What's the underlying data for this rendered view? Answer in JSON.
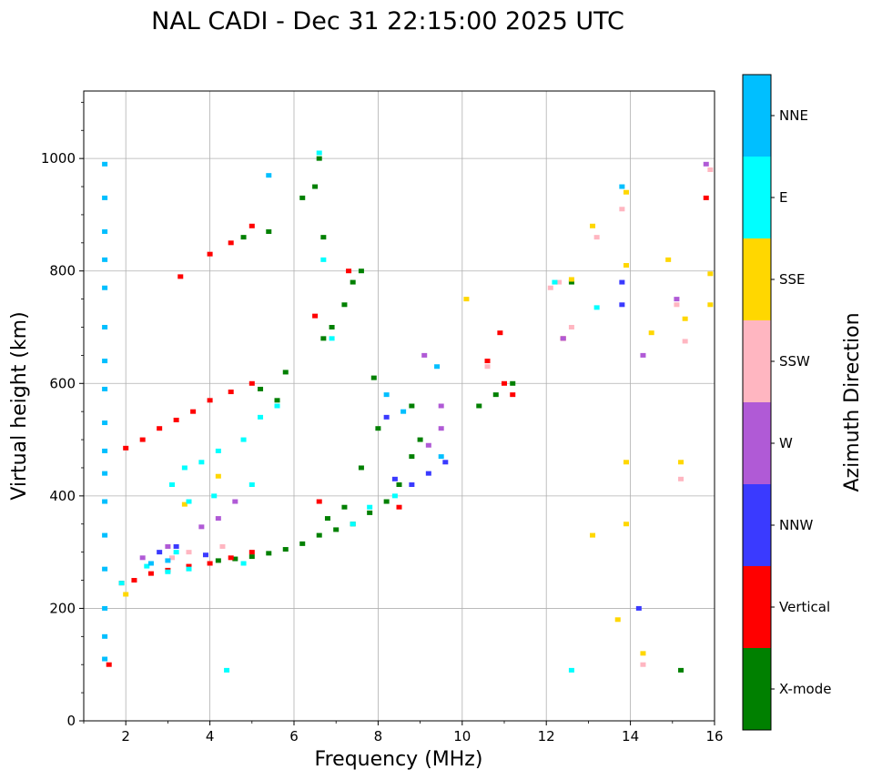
{
  "chart_data": {
    "type": "scatter",
    "title": "NAL CADI - Dec 31 22:15:00 2025 UTC",
    "xlabel": "Frequency (MHz)",
    "ylabel": "Virtual height (km)",
    "xlim": [
      1,
      16
    ],
    "ylim": [
      0,
      1120
    ],
    "xticks": [
      2,
      4,
      6,
      8,
      10,
      12,
      14,
      16
    ],
    "yticks": [
      0,
      200,
      400,
      600,
      800,
      1000
    ],
    "grid": true,
    "colorbar": {
      "label": "Azimuth Direction",
      "categories": [
        "X-mode",
        "Vertical",
        "NNW",
        "W",
        "SSW",
        "SSE",
        "E",
        "NNE"
      ],
      "colors": [
        "#008000",
        "#ff0000",
        "#3a3aff",
        "#b05ad6",
        "#ffb6c1",
        "#ffd700",
        "#00ffff",
        "#00bfff"
      ]
    },
    "series": [
      {
        "name": "X-mode",
        "points": [
          [
            4.2,
            285
          ],
          [
            4.6,
            288
          ],
          [
            5.0,
            292
          ],
          [
            5.4,
            298
          ],
          [
            5.8,
            305
          ],
          [
            6.2,
            315
          ],
          [
            6.6,
            330
          ],
          [
            7.0,
            340
          ],
          [
            7.4,
            350
          ],
          [
            7.8,
            370
          ],
          [
            8.2,
            390
          ],
          [
            8.5,
            420
          ],
          [
            8.8,
            470
          ],
          [
            9.0,
            500
          ],
          [
            7.2,
            380
          ],
          [
            6.8,
            360
          ],
          [
            7.6,
            450
          ],
          [
            8.0,
            520
          ],
          [
            8.8,
            560
          ],
          [
            7.9,
            610
          ],
          [
            5.6,
            570
          ],
          [
            5.2,
            590
          ],
          [
            5.8,
            620
          ],
          [
            6.7,
            680
          ],
          [
            6.9,
            700
          ],
          [
            7.2,
            740
          ],
          [
            7.6,
            800
          ],
          [
            7.4,
            780
          ],
          [
            6.2,
            930
          ],
          [
            6.6,
            1000
          ],
          [
            6.5,
            950
          ],
          [
            5.4,
            870
          ],
          [
            4.8,
            860
          ],
          [
            10.4,
            560
          ],
          [
            10.8,
            580
          ],
          [
            11.2,
            600
          ],
          [
            12.6,
            780
          ],
          [
            15.2,
            90
          ],
          [
            6.7,
            860
          ]
        ]
      },
      {
        "name": "Vertical",
        "points": [
          [
            1.6,
            100
          ],
          [
            1.9,
            245
          ],
          [
            2.2,
            250
          ],
          [
            2.6,
            262
          ],
          [
            3.0,
            268
          ],
          [
            3.5,
            275
          ],
          [
            4.0,
            280
          ],
          [
            4.5,
            290
          ],
          [
            5.0,
            300
          ],
          [
            8.5,
            380
          ],
          [
            2.0,
            485
          ],
          [
            2.4,
            500
          ],
          [
            2.8,
            520
          ],
          [
            3.2,
            535
          ],
          [
            3.6,
            550
          ],
          [
            4.0,
            570
          ],
          [
            4.5,
            585
          ],
          [
            5.0,
            600
          ],
          [
            4.0,
            830
          ],
          [
            4.5,
            850
          ],
          [
            5.0,
            880
          ],
          [
            3.3,
            790
          ],
          [
            10.6,
            640
          ],
          [
            11.0,
            600
          ],
          [
            11.2,
            580
          ],
          [
            10.9,
            690
          ],
          [
            12.4,
            680
          ],
          [
            15.8,
            930
          ],
          [
            6.6,
            390
          ],
          [
            6.5,
            720
          ],
          [
            7.3,
            800
          ]
        ]
      },
      {
        "name": "NNW",
        "points": [
          [
            2.8,
            300
          ],
          [
            3.2,
            310
          ],
          [
            8.4,
            430
          ],
          [
            8.8,
            420
          ],
          [
            9.2,
            440
          ],
          [
            9.6,
            460
          ],
          [
            14.2,
            200
          ],
          [
            13.8,
            780
          ],
          [
            13.8,
            740
          ],
          [
            8.2,
            540
          ],
          [
            3.9,
            295
          ]
        ]
      },
      {
        "name": "W",
        "points": [
          [
            2.4,
            290
          ],
          [
            3.0,
            310
          ],
          [
            3.8,
            345
          ],
          [
            4.2,
            360
          ],
          [
            4.6,
            390
          ],
          [
            9.2,
            490
          ],
          [
            9.5,
            520
          ],
          [
            9.5,
            560
          ],
          [
            15.1,
            750
          ],
          [
            15.8,
            990
          ],
          [
            14.3,
            650
          ],
          [
            12.4,
            680
          ],
          [
            9.1,
            650
          ]
        ]
      },
      {
        "name": "SSW",
        "points": [
          [
            3.1,
            290
          ],
          [
            3.5,
            300
          ],
          [
            4.3,
            310
          ],
          [
            12.1,
            770
          ],
          [
            12.3,
            780
          ],
          [
            12.6,
            700
          ],
          [
            13.2,
            860
          ],
          [
            13.8,
            910
          ],
          [
            15.1,
            740
          ],
          [
            15.3,
            675
          ],
          [
            15.9,
            980
          ],
          [
            15.2,
            430
          ],
          [
            14.3,
            100
          ],
          [
            10.6,
            630
          ]
        ]
      },
      {
        "name": "SSE",
        "points": [
          [
            2.0,
            225
          ],
          [
            3.4,
            385
          ],
          [
            4.2,
            435
          ],
          [
            12.6,
            785
          ],
          [
            13.1,
            880
          ],
          [
            13.9,
            940
          ],
          [
            13.9,
            810
          ],
          [
            13.9,
            460
          ],
          [
            14.5,
            690
          ],
          [
            14.9,
            820
          ],
          [
            15.2,
            460
          ],
          [
            15.3,
            715
          ],
          [
            15.9,
            795
          ],
          [
            15.9,
            740
          ],
          [
            13.1,
            330
          ],
          [
            13.7,
            180
          ],
          [
            14.3,
            120
          ],
          [
            13.9,
            350
          ],
          [
            10.1,
            750
          ]
        ]
      },
      {
        "name": "E",
        "points": [
          [
            1.9,
            245
          ],
          [
            2.5,
            275
          ],
          [
            3.0,
            265
          ],
          [
            3.5,
            270
          ],
          [
            3.2,
            300
          ],
          [
            3.1,
            420
          ],
          [
            3.4,
            450
          ],
          [
            3.8,
            460
          ],
          [
            4.2,
            480
          ],
          [
            4.8,
            500
          ],
          [
            3.5,
            390
          ],
          [
            4.1,
            400
          ],
          [
            5.0,
            420
          ],
          [
            5.2,
            540
          ],
          [
            5.6,
            560
          ],
          [
            6.6,
            1010
          ],
          [
            6.7,
            820
          ],
          [
            6.9,
            680
          ],
          [
            7.4,
            350
          ],
          [
            7.8,
            380
          ],
          [
            8.4,
            400
          ],
          [
            4.8,
            280
          ],
          [
            4.4,
            90
          ],
          [
            12.6,
            90
          ],
          [
            13.2,
            735
          ],
          [
            12.2,
            780
          ]
        ]
      },
      {
        "name": "NNE",
        "points": [
          [
            1.5,
            990
          ],
          [
            1.5,
            930
          ],
          [
            1.5,
            870
          ],
          [
            1.5,
            820
          ],
          [
            1.5,
            770
          ],
          [
            1.5,
            700
          ],
          [
            1.5,
            640
          ],
          [
            1.5,
            590
          ],
          [
            1.5,
            530
          ],
          [
            1.5,
            480
          ],
          [
            1.5,
            440
          ],
          [
            1.5,
            390
          ],
          [
            1.5,
            330
          ],
          [
            1.5,
            270
          ],
          [
            1.5,
            200
          ],
          [
            1.5,
            150
          ],
          [
            1.5,
            110
          ],
          [
            2.6,
            280
          ],
          [
            3.0,
            285
          ],
          [
            5.4,
            970
          ],
          [
            9.5,
            470
          ],
          [
            9.4,
            630
          ],
          [
            8.2,
            580
          ],
          [
            8.6,
            550
          ],
          [
            13.8,
            950
          ]
        ]
      }
    ]
  }
}
